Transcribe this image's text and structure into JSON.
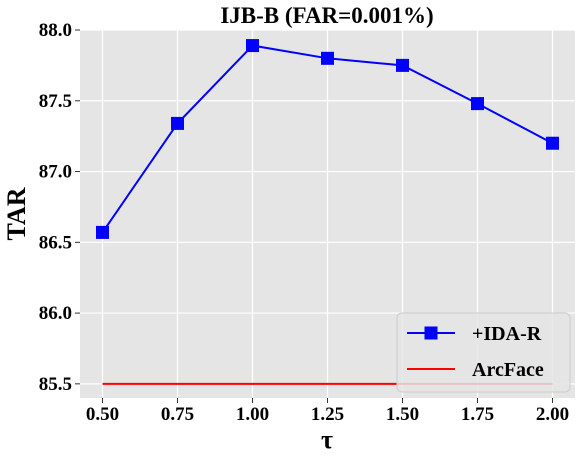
{
  "chart_data": {
    "type": "line",
    "title": "IJB-B (FAR=0.001%)",
    "xlabel": "τ",
    "ylabel": "TAR",
    "x": [
      0.5,
      0.75,
      1.0,
      1.25,
      1.5,
      1.75,
      2.0
    ],
    "x_tick_labels": [
      "0.50",
      "0.75",
      "1.00",
      "1.25",
      "1.50",
      "1.75",
      "2.00"
    ],
    "y_ticks": [
      85.5,
      86.0,
      86.5,
      87.0,
      87.5,
      88.0
    ],
    "y_tick_labels": [
      "85.5",
      "86.0",
      "86.5",
      "87.0",
      "87.5",
      "88.0"
    ],
    "xlim": [
      0.425,
      2.075
    ],
    "ylim": [
      85.4,
      88.0
    ],
    "grid": true,
    "legend_position": "bottom-right",
    "series": [
      {
        "name": "+IDA-R",
        "values": [
          86.57,
          87.34,
          87.89,
          87.8,
          87.75,
          87.48,
          87.2
        ],
        "color": "#0000ff",
        "marker": "square"
      },
      {
        "name": "ArcFace",
        "values": [
          85.5,
          85.5,
          85.5,
          85.5,
          85.5,
          85.5,
          85.5
        ],
        "color": "#ff0000",
        "marker": "none"
      }
    ],
    "plot_background": "#e5e5e5",
    "grid_color": "#ffffff"
  }
}
